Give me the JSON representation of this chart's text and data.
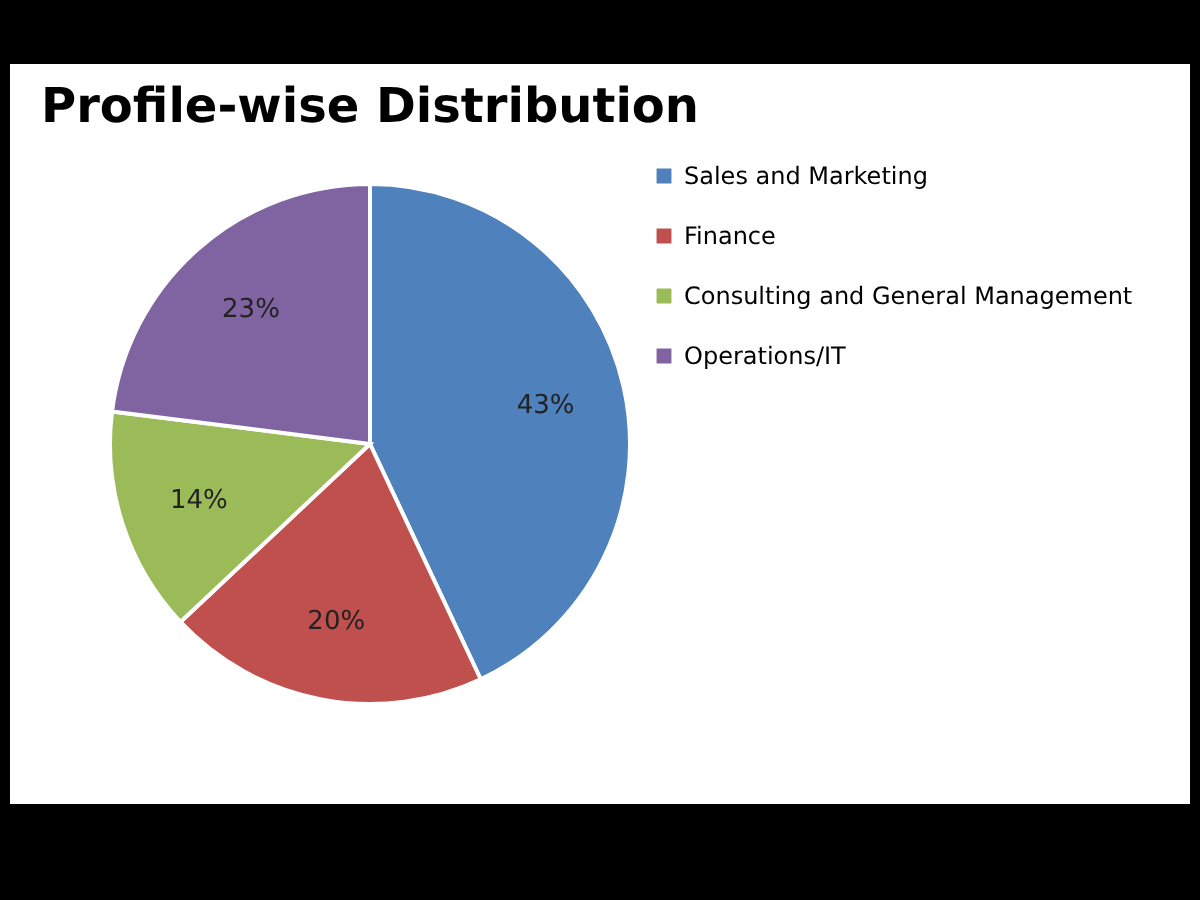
{
  "chart_data": {
    "type": "pie",
    "title": "Profile-wise Distribution",
    "categories": [
      "Sales and Marketing",
      "Finance",
      "Consulting and General Management",
      "Operations/IT"
    ],
    "values": [
      43,
      20,
      14,
      23
    ],
    "colors": [
      "#4f81bd",
      "#c0504d",
      "#9bbb59",
      "#8064a2"
    ],
    "value_labels": [
      "43%",
      "20%",
      "14%",
      "23%"
    ],
    "legend": "right"
  }
}
